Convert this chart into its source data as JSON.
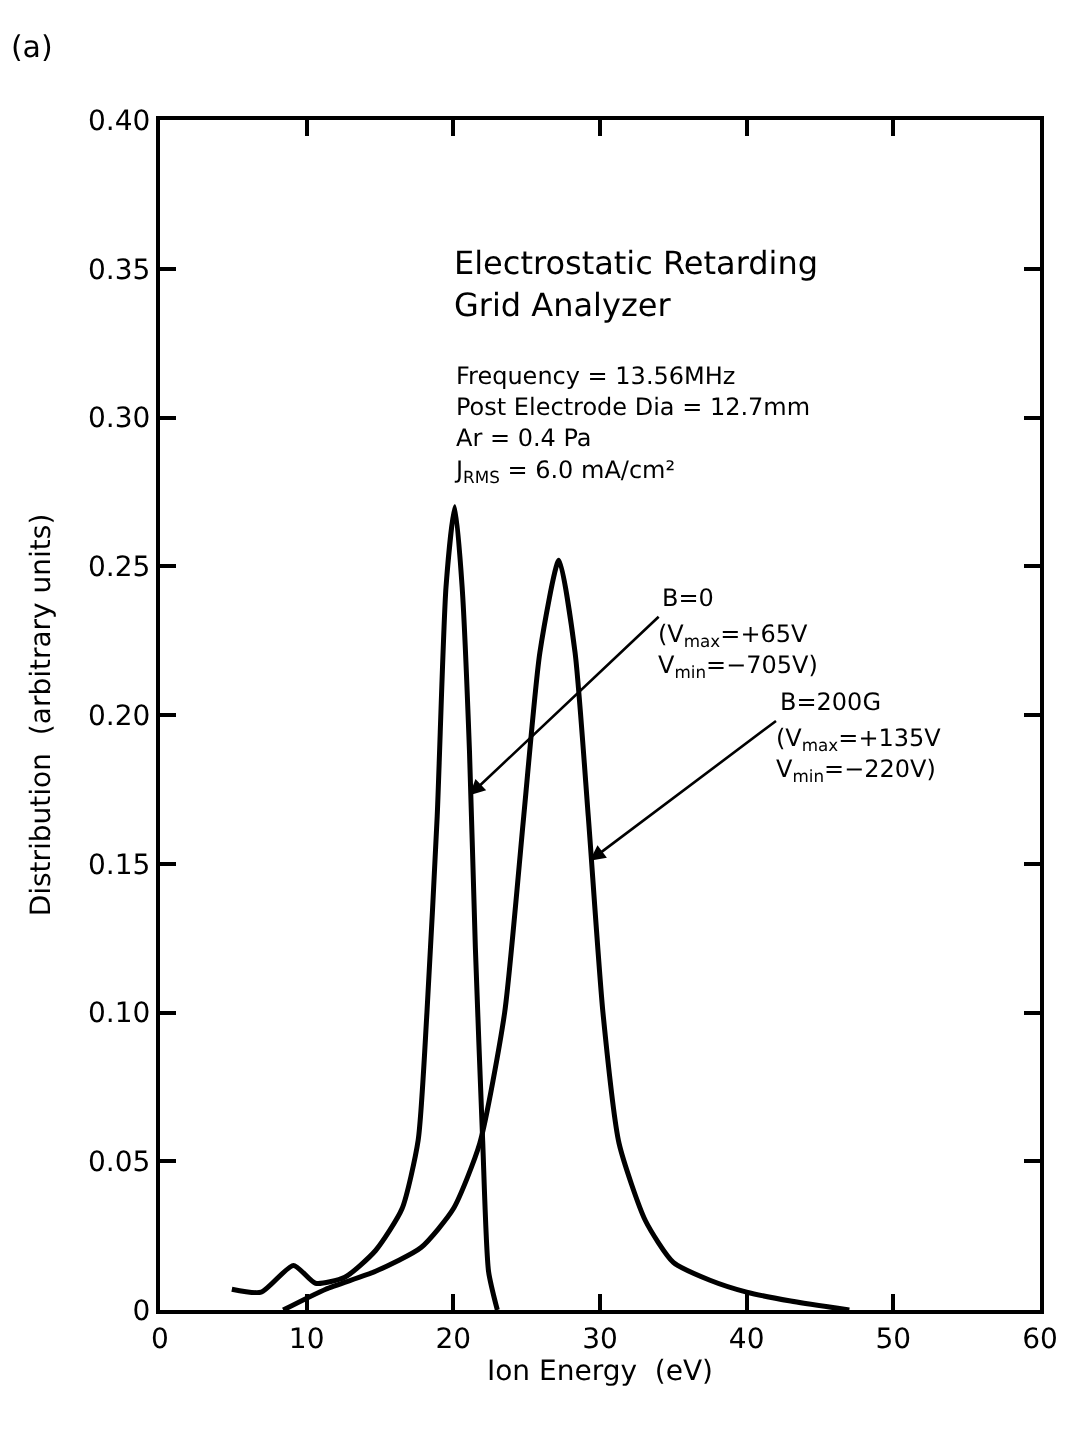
{
  "chart_data": {
    "type": "line",
    "title": "(a)",
    "xlabel": "Ion Energy  (eV)",
    "ylabel": "Distribution  (arbitrary units)",
    "xlim": [
      0,
      60
    ],
    "xticks": [
      0,
      10,
      20,
      30,
      40,
      50,
      60
    ],
    "ylim": [
      0,
      0.4
    ],
    "yticks": [
      0,
      0.05,
      {
        "value": 0.1,
        "label": "0.10"
      },
      0.15,
      {
        "value": 0.2,
        "label": "0.20"
      },
      0.25,
      {
        "value": 0.3,
        "label": "0.30"
      },
      0.35,
      {
        "value": 0.4,
        "label": "0.40"
      }
    ],
    "marker": "none",
    "line_style": "solid",
    "series": [
      {
        "color": "#000000",
        "x": [
          4.9,
          6.9,
          9.1,
          10.6,
          12.6,
          14.7,
          16.5,
          17.6,
          18.2,
          18.9,
          19.5,
          20.1,
          20.6,
          21.1,
          21.5,
          22.0,
          22.4,
          23.0
        ],
        "values": [
          0.007,
          0.006,
          0.015,
          0.009,
          0.011,
          0.02,
          0.034,
          0.057,
          0.1,
          0.166,
          0.243,
          0.27,
          0.243,
          0.188,
          0.122,
          0.057,
          0.013,
          0
        ]
      },
      {
        "color": "#000000",
        "x": [
          8.4,
          11.3,
          14.7,
          17.8,
          20.0,
          21.8,
          23.5,
          24.8,
          25.9,
          27.2,
          28.3,
          29.2,
          30.2,
          31.3,
          33.1,
          35.0,
          37.5,
          40.0,
          43.0,
          47.0
        ],
        "values": [
          0,
          0.007,
          0.013,
          0.021,
          0.034,
          0.056,
          0.1,
          0.166,
          0.221,
          0.252,
          0.221,
          0.166,
          0.1,
          0.056,
          0.03,
          0.016,
          0.01,
          0.006,
          0.003,
          0
        ]
      }
    ],
    "annotations": [
      "Electrostatic Retarding\nGrid Analyzer",
      "Frequency = 13.56MHz\nPost Electrode Dia = 12.7mm\nAr = 0.4 Pa\nJ$_{RMS}$ = 6.0 mA/cm²",
      {
        "text": "B=0",
        "x": 21.1,
        "y": 0.173
      },
      "(V$_{max}$=+65V\nV$_{min}$=−705V)",
      {
        "text": "B=200G",
        "x": 29.3,
        "y": 0.151
      },
      "(V$_{max}$=+135V\nV$_{min}$=−220V)"
    ]
  }
}
